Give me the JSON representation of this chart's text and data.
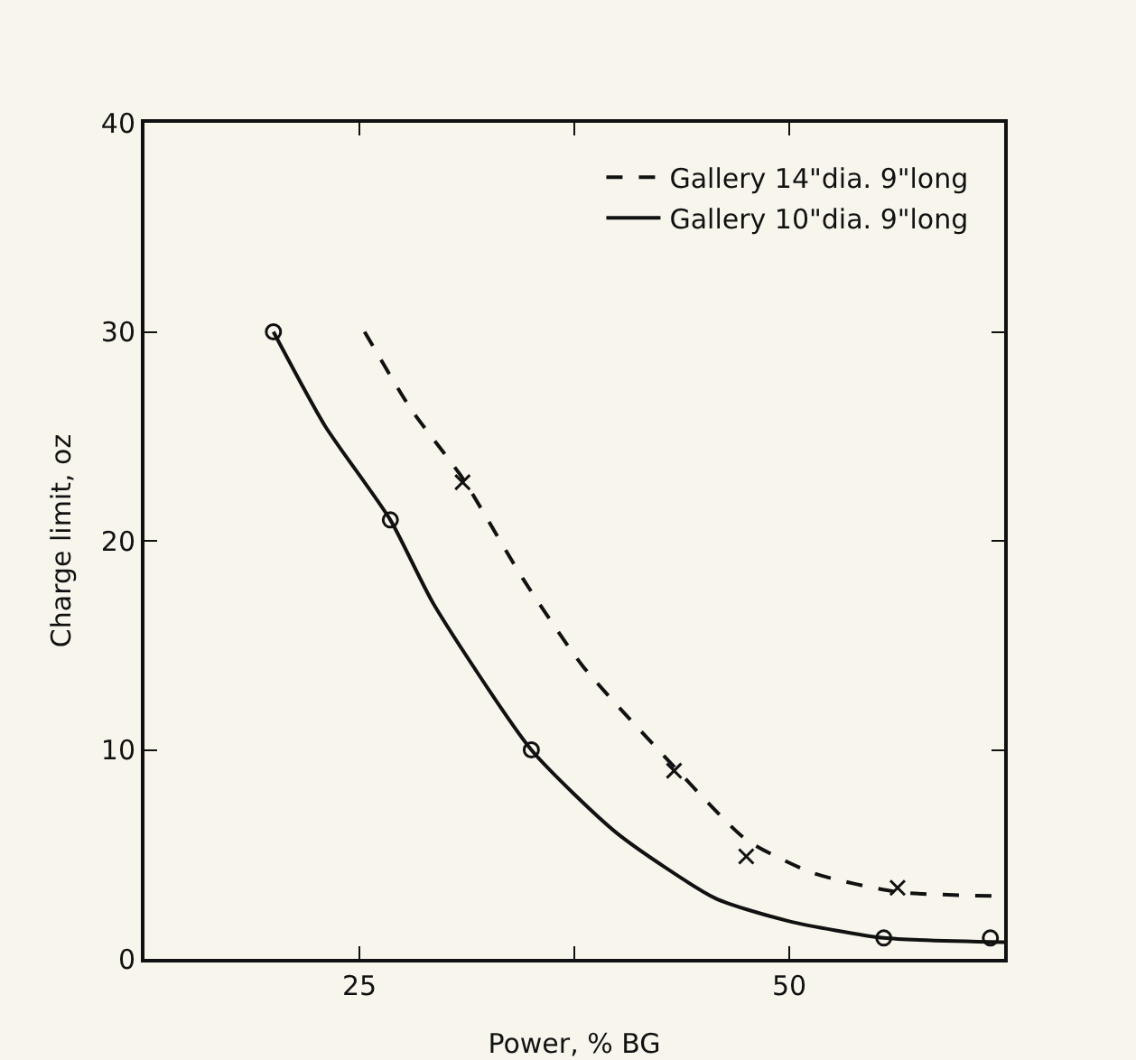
{
  "chart_data": {
    "type": "line",
    "xlabel": "Power, % BG",
    "ylabel": "Charge limit, oz",
    "xlim": [
      12.5,
      62.5
    ],
    "ylim": [
      0,
      40
    ],
    "xticks": [
      25,
      {
        "value": 37.5,
        "label": null
      },
      50
    ],
    "yticks": [
      0,
      10,
      20,
      30,
      40
    ],
    "grid": false,
    "legend": "top right",
    "series": [
      {
        "name": "Gallery 14\"dia. 9\"long",
        "color": "#111111",
        "line_style": "dashed",
        "marker": "none",
        "x": [
          25.3,
          28,
          31,
          34.5,
          38,
          43.3,
          47.5,
          51.4,
          56.3,
          62.5
        ],
        "values": [
          30,
          26.3,
          23,
          18.2,
          14,
          9.2,
          5.7,
          4.1,
          3.2,
          3
        ]
      },
      {
        "name": "Gallery 10\"dia. 9\"long",
        "color": "#111111",
        "line_style": "solid",
        "marker": "none",
        "x": [
          20,
          23,
          26.8,
          29.3,
          35,
          40,
          45.7,
          50,
          55.5,
          62.5
        ],
        "values": [
          30,
          25.5,
          21,
          17,
          10,
          6,
          2.9,
          1.8,
          1,
          0.8
        ]
      },
      {
        "type": "scatter",
        "color": "#111111",
        "marker": "cross",
        "x": [
          31,
          43.3,
          47.5,
          56.3
        ],
        "values": [
          22.8,
          9,
          4.9,
          3.4
        ]
      },
      {
        "type": "scatter",
        "color": "#111111",
        "marker": "circle",
        "x": [
          20,
          26.8,
          35,
          55.5,
          61.7
        ],
        "values": [
          30,
          21,
          10,
          1,
          1
        ]
      }
    ]
  }
}
